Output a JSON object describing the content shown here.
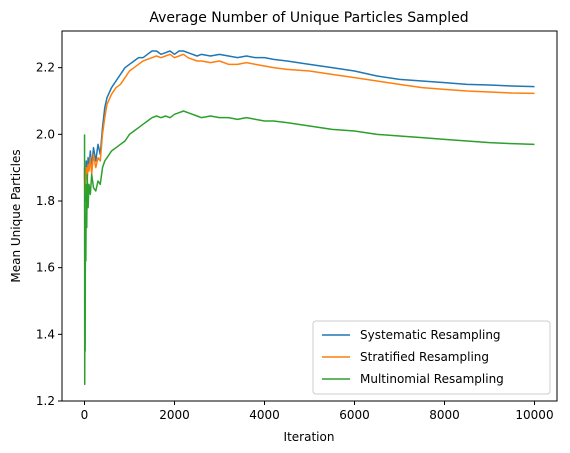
{
  "chart_data": {
    "type": "line",
    "title": "Average Number of Unique Particles Sampled",
    "xlabel": "Iteration",
    "ylabel": "Mean Unique Particles",
    "xlim": [
      -500,
      10500
    ],
    "ylim": [
      1.2,
      2.31
    ],
    "xticks": [
      0,
      2000,
      4000,
      6000,
      8000,
      10000
    ],
    "yticks": [
      1.2,
      1.4,
      1.6,
      1.8,
      2.0,
      2.2
    ],
    "xtick_labels": [
      "0",
      "2000",
      "4000",
      "6000",
      "8000",
      "10000"
    ],
    "ytick_labels": [
      "1.2",
      "1.4",
      "1.6",
      "1.8",
      "2.0",
      "2.2"
    ],
    "grid": false,
    "legend_position": "lower-right",
    "series": [
      {
        "name": "Systematic Resampling",
        "color": "#1f77b4",
        "x": [
          1,
          10,
          20,
          40,
          60,
          80,
          100,
          130,
          160,
          200,
          250,
          300,
          350,
          400,
          450,
          500,
          600,
          700,
          800,
          900,
          1000,
          1100,
          1200,
          1300,
          1400,
          1500,
          1600,
          1700,
          1800,
          1900,
          2000,
          2100,
          2200,
          2300,
          2400,
          2500,
          2600,
          2800,
          3000,
          3200,
          3400,
          3600,
          3800,
          4000,
          4200,
          4500,
          5000,
          5500,
          6000,
          6500,
          7000,
          7500,
          8000,
          8500,
          9000,
          9500,
          10000
        ],
        "values": [
          1.9,
          1.8,
          1.87,
          1.92,
          1.86,
          1.93,
          1.9,
          1.95,
          1.9,
          1.96,
          1.92,
          1.97,
          1.94,
          2.02,
          2.08,
          2.11,
          2.14,
          2.16,
          2.18,
          2.2,
          2.21,
          2.22,
          2.23,
          2.23,
          2.24,
          2.25,
          2.25,
          2.24,
          2.245,
          2.25,
          2.24,
          2.25,
          2.25,
          2.245,
          2.24,
          2.235,
          2.24,
          2.235,
          2.24,
          2.235,
          2.23,
          2.235,
          2.23,
          2.23,
          2.225,
          2.22,
          2.21,
          2.2,
          2.19,
          2.175,
          2.165,
          2.16,
          2.155,
          2.15,
          2.148,
          2.145,
          2.143
        ]
      },
      {
        "name": "Stratified Resampling",
        "color": "#ff7f0e",
        "x": [
          1,
          10,
          20,
          40,
          60,
          80,
          100,
          130,
          160,
          200,
          250,
          300,
          350,
          400,
          450,
          500,
          600,
          700,
          800,
          900,
          1000,
          1100,
          1200,
          1300,
          1400,
          1500,
          1600,
          1700,
          1800,
          1900,
          2000,
          2100,
          2200,
          2300,
          2400,
          2500,
          2600,
          2800,
          3000,
          3200,
          3400,
          3600,
          3800,
          4000,
          4200,
          4500,
          5000,
          5500,
          6000,
          6500,
          7000,
          7500,
          8000,
          8500,
          9000,
          9500,
          10000
        ],
        "values": [
          1.88,
          1.82,
          1.86,
          1.9,
          1.87,
          1.91,
          1.89,
          1.93,
          1.88,
          1.94,
          1.9,
          1.93,
          1.92,
          2.0,
          2.05,
          2.09,
          2.12,
          2.14,
          2.15,
          2.17,
          2.19,
          2.2,
          2.21,
          2.22,
          2.225,
          2.23,
          2.235,
          2.23,
          2.235,
          2.24,
          2.23,
          2.235,
          2.24,
          2.23,
          2.225,
          2.22,
          2.22,
          2.215,
          2.22,
          2.21,
          2.21,
          2.215,
          2.21,
          2.205,
          2.2,
          2.195,
          2.19,
          2.18,
          2.17,
          2.16,
          2.15,
          2.14,
          2.135,
          2.13,
          2.127,
          2.124,
          2.123
        ]
      },
      {
        "name": "Multinomial Resampling",
        "color": "#2ca02c",
        "x": [
          1,
          5,
          10,
          15,
          20,
          30,
          40,
          50,
          60,
          80,
          100,
          130,
          160,
          200,
          250,
          300,
          350,
          400,
          450,
          500,
          600,
          700,
          800,
          900,
          1000,
          1100,
          1200,
          1300,
          1400,
          1500,
          1600,
          1700,
          1800,
          1900,
          2000,
          2100,
          2200,
          2300,
          2400,
          2500,
          2600,
          2800,
          3000,
          3200,
          3400,
          3600,
          3800,
          4000,
          4200,
          4500,
          5000,
          5500,
          6000,
          6500,
          7000,
          7500,
          8000,
          8500,
          9000,
          9500,
          10000
        ],
        "values": [
          2.0,
          1.25,
          1.6,
          1.35,
          1.75,
          1.62,
          1.85,
          1.72,
          1.88,
          1.78,
          1.85,
          1.82,
          1.88,
          1.84,
          1.83,
          1.86,
          1.85,
          1.9,
          1.92,
          1.93,
          1.95,
          1.96,
          1.97,
          1.98,
          2.0,
          2.01,
          2.02,
          2.03,
          2.04,
          2.05,
          2.055,
          2.05,
          2.055,
          2.05,
          2.06,
          2.065,
          2.07,
          2.065,
          2.06,
          2.055,
          2.05,
          2.055,
          2.05,
          2.05,
          2.045,
          2.05,
          2.045,
          2.04,
          2.04,
          2.035,
          2.025,
          2.015,
          2.01,
          2.0,
          1.995,
          1.99,
          1.985,
          1.98,
          1.975,
          1.972,
          1.97
        ]
      }
    ]
  }
}
